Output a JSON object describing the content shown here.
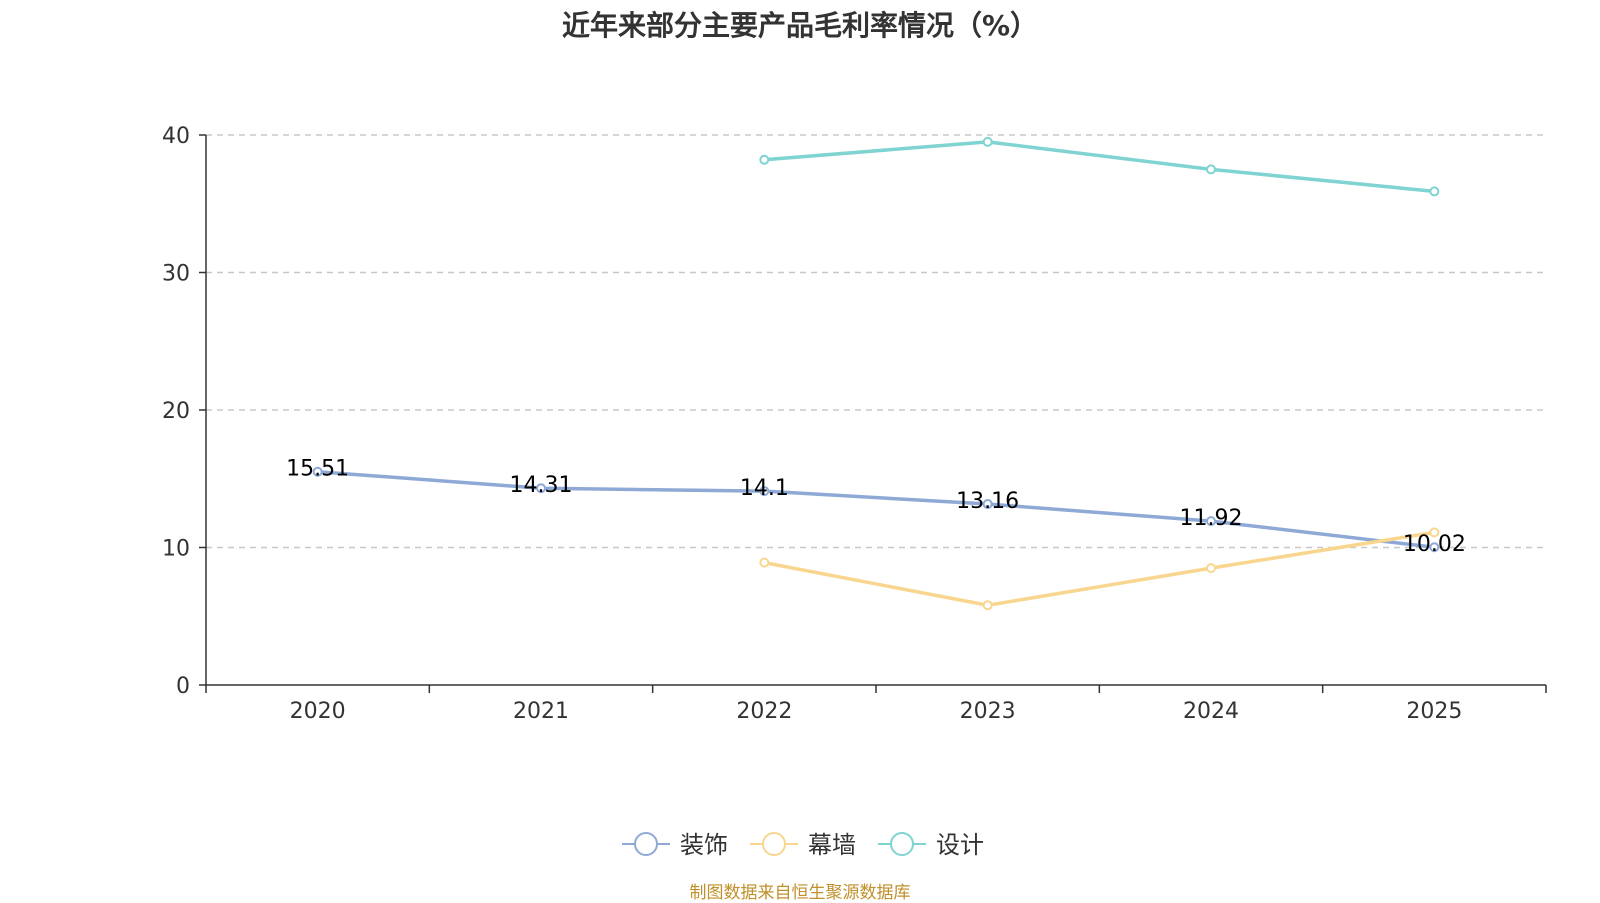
{
  "chart_data": {
    "type": "line",
    "title": "近年来部分主要产品毛利率情况（%）",
    "categories": [
      "2020",
      "2021",
      "2022",
      "2023",
      "2024",
      "2025"
    ],
    "ylim": [
      0,
      40
    ],
    "yticks": [
      0,
      10,
      20,
      30,
      40
    ],
    "xlabel": "",
    "ylabel": "",
    "grid": "horizontal dashed",
    "legend_position": "bottom-center",
    "series": [
      {
        "name": "装饰",
        "color": "#8fa9d6",
        "values": [
          15.51,
          14.31,
          14.1,
          13.16,
          11.92,
          10.02
        ],
        "labels": [
          "15.51",
          "14.31",
          "14.1",
          "13.16",
          "11.92",
          "10.02"
        ]
      },
      {
        "name": "幕墙",
        "color": "#f9d68f",
        "values": [
          null,
          null,
          8.9,
          5.8,
          8.5,
          11.1
        ],
        "labels": null
      },
      {
        "name": "设计",
        "color": "#7fd3d1",
        "values": [
          null,
          null,
          38.2,
          39.5,
          37.5,
          35.9
        ],
        "labels": null
      }
    ]
  },
  "source_note": "制图数据来自恒生聚源数据库"
}
